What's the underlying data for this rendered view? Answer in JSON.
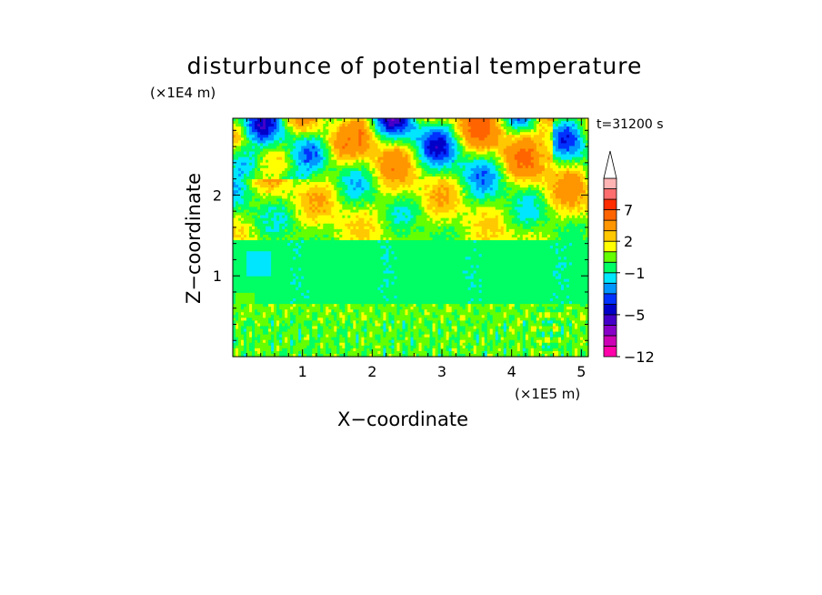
{
  "chart_data": {
    "type": "heatmap",
    "title": "disturbunce of potential temperature",
    "xlabel": "X−coordinate",
    "ylabel": "Z−coordinate",
    "x_unit": "(×1E5 m)",
    "z_unit": "(×1E4 m)",
    "time_label": "t=31200 s",
    "xlim": [
      0,
      5.1
    ],
    "ylim": [
      0,
      2.95
    ],
    "xticks": [
      1,
      2,
      3,
      4,
      5
    ],
    "yticks": [
      1,
      2
    ],
    "xtick_labels": [
      "1",
      "2",
      "3",
      "4",
      "5"
    ],
    "ytick_labels": [
      "1",
      "2"
    ],
    "grid": false,
    "colorbar": {
      "levels": [
        -12,
        -10,
        -8,
        -6,
        -5,
        -4,
        -3,
        -2,
        -1,
        0,
        1,
        2,
        3,
        5,
        7,
        9,
        11
      ],
      "tick_values": [
        -12,
        -5,
        -1,
        2,
        7
      ],
      "tick_labels": [
        "−12",
        "−5",
        "−1",
        "2",
        "7"
      ],
      "colors": [
        "#ff00aa",
        "#cc00b4",
        "#8800c8",
        "#4400c8",
        "#0000c8",
        "#0032ff",
        "#0096ff",
        "#00e6ff",
        "#00ff64",
        "#64ff00",
        "#ffff00",
        "#ffc800",
        "#ff9600",
        "#ff6400",
        "#ff2d00",
        "#ff6e6e",
        "#ffb4b4"
      ],
      "extend": "max"
    },
    "field_description": {
      "lower_layer": {
        "z_range": [
          0,
          0.65
        ],
        "typical_value": 0.5
      },
      "middle_layer": {
        "z_range": [
          0.65,
          1.45
        ],
        "typical_value": -0.5
      },
      "upper_layer": {
        "z_range": [
          1.45,
          2.95
        ],
        "value_range": [
          -6,
          7
        ],
        "pattern": "tilted wave bands"
      }
    }
  }
}
